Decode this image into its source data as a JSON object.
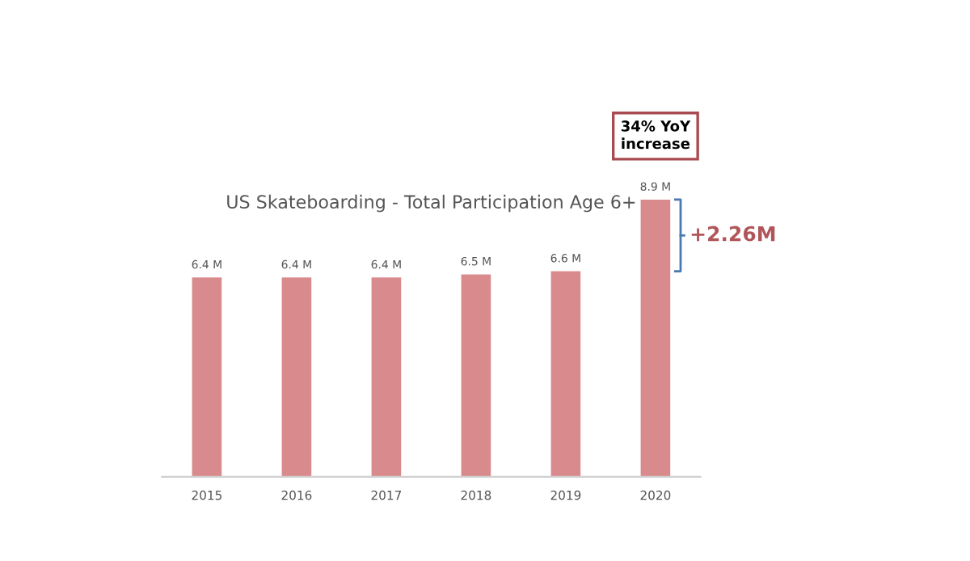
{
  "chart_data": {
    "type": "bar",
    "title": "US Skateboarding - Total Participation Age 6+",
    "categories": [
      "2015",
      "2016",
      "2017",
      "2018",
      "2019",
      "2020"
    ],
    "values": [
      6.4,
      6.4,
      6.4,
      6.5,
      6.6,
      8.9
    ],
    "value_labels": [
      "6.4 M",
      "6.4 M",
      "6.4 M",
      "6.5 M",
      "6.6 M",
      "8.9 M"
    ],
    "color": "#d98a8c",
    "annotations": [
      "34% YoY increase",
      "+2.26M"
    ]
  }
}
